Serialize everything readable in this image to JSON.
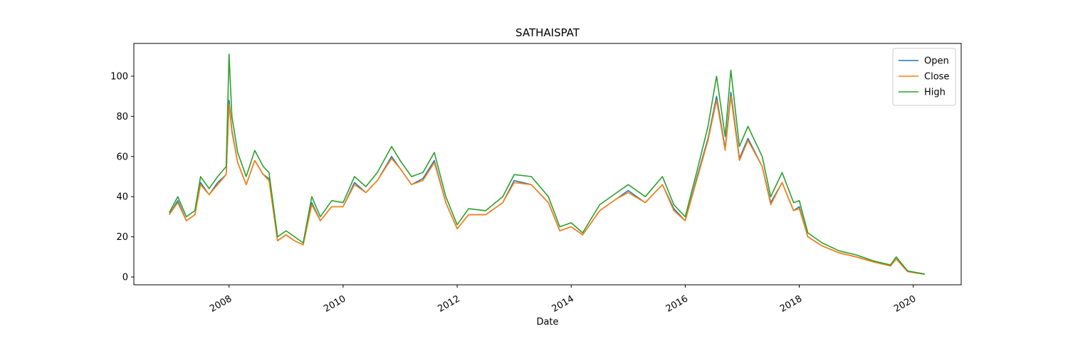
{
  "chart_data": {
    "type": "line",
    "title": "SATHAISPAT",
    "x_label": "Date",
    "x": [
      2006.95,
      2007.1,
      2007.25,
      2007.4,
      2007.5,
      2007.65,
      2007.8,
      2007.95,
      2008.0,
      2008.05,
      2008.15,
      2008.3,
      2008.45,
      2008.6,
      2008.7,
      2008.85,
      2009.0,
      2009.15,
      2009.3,
      2009.45,
      2009.6,
      2009.8,
      2010.0,
      2010.2,
      2010.4,
      2010.6,
      2010.85,
      2011.0,
      2011.2,
      2011.4,
      2011.6,
      2011.8,
      2012.0,
      2012.2,
      2012.5,
      2012.8,
      2013.0,
      2013.3,
      2013.6,
      2013.8,
      2014.0,
      2014.2,
      2014.5,
      2014.8,
      2015.0,
      2015.3,
      2015.6,
      2015.8,
      2016.0,
      2016.2,
      2016.4,
      2016.55,
      2016.7,
      2016.8,
      2016.95,
      2017.1,
      2017.35,
      2017.5,
      2017.7,
      2017.9,
      2018.0,
      2018.15,
      2018.4,
      2018.7,
      2019.0,
      2019.3,
      2019.6,
      2019.7,
      2019.9,
      2020.1,
      2020.2
    ],
    "series": [
      {
        "name": "Open",
        "color": "#1f77b4",
        "values": [
          31,
          38,
          28,
          31,
          47,
          41,
          47,
          51,
          88,
          73,
          57,
          46,
          58,
          51,
          49,
          18,
          21,
          18,
          16,
          37,
          28,
          35,
          35,
          47,
          42,
          48,
          60,
          54,
          46,
          49,
          58,
          37,
          24,
          31,
          31,
          37,
          48,
          46,
          37,
          23,
          25,
          21,
          33,
          39,
          43,
          37,
          46,
          34,
          28,
          49,
          69,
          90,
          64,
          92,
          59,
          69,
          55,
          37,
          47,
          33,
          35,
          20,
          15.5,
          12,
          10,
          7.5,
          5.5,
          9,
          2.7,
          1.8,
          1.4
        ]
      },
      {
        "name": "Close",
        "color": "#ff7f0e",
        "values": [
          31,
          37,
          28,
          31,
          46,
          41,
          46,
          51,
          86,
          72,
          57,
          46,
          58,
          51,
          48,
          18,
          21,
          18,
          16,
          36,
          28,
          35,
          35,
          46,
          42,
          48,
          59,
          54,
          46,
          48,
          57,
          37,
          24,
          31,
          31,
          37,
          47,
          46,
          37,
          23,
          25,
          21,
          33,
          39,
          42,
          37,
          46,
          33,
          28,
          48,
          68,
          88,
          63,
          90,
          58,
          68,
          55,
          36,
          47,
          33,
          34,
          20,
          15.5,
          12,
          10,
          7.5,
          5.5,
          9,
          2.7,
          1.8,
          1.4
        ]
      },
      {
        "name": "High",
        "color": "#2ca02c",
        "values": [
          32,
          40,
          30,
          33,
          50,
          44,
          50,
          55,
          111,
          80,
          62,
          50,
          63,
          55,
          52,
          20,
          23,
          20,
          17,
          40,
          30,
          38,
          37,
          50,
          45,
          52,
          65,
          58,
          50,
          52,
          62,
          40,
          26,
          34,
          33,
          40,
          51,
          50,
          40,
          25,
          27,
          22,
          36,
          42,
          46,
          40,
          50,
          36,
          30,
          52,
          75,
          100,
          70,
          103,
          65,
          75,
          60,
          40,
          52,
          37,
          38,
          22,
          17,
          13,
          11,
          8,
          6,
          10,
          3,
          2,
          1.5
        ]
      }
    ],
    "xlim": [
      2006.33,
      2020.84
    ],
    "xticks": [
      2008,
      2010,
      2012,
      2014,
      2016,
      2018,
      2020
    ],
    "ylim": [
      -3.9,
      116.3
    ],
    "yticks": [
      0,
      20,
      40,
      60,
      80,
      100
    ],
    "legend": "upper right"
  }
}
